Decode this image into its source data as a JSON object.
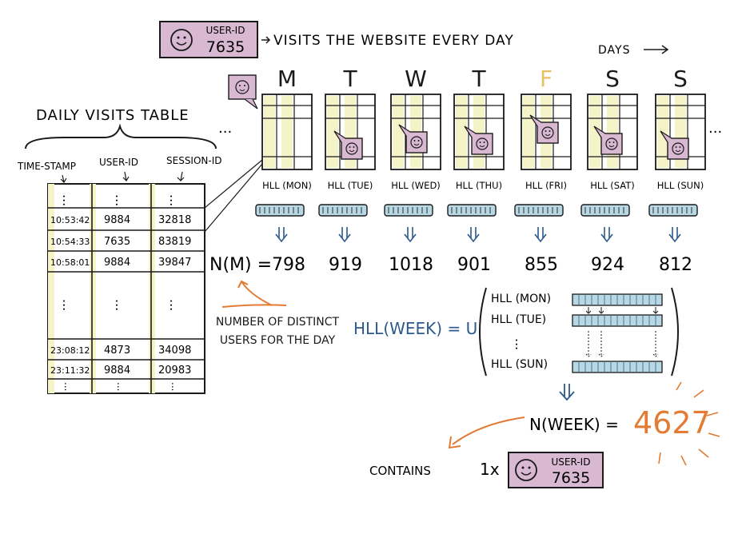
{
  "header": {
    "user_badge": {
      "label": "USER-ID",
      "id": "7635"
    },
    "visits_text": "VISITS THE WEBSITE EVERY DAY",
    "days_label": "DAYS"
  },
  "daily_table": {
    "title": "DAILY VISITS TABLE",
    "columns": [
      "TIME-STAMP",
      "USER-ID",
      "SESSION-ID"
    ],
    "rows_top": [
      [
        "10:53:42",
        "9884",
        "32818"
      ],
      [
        "10:54:33",
        "7635",
        "83819"
      ],
      [
        "10:58:01",
        "9884",
        "39847"
      ]
    ],
    "rows_bottom": [
      [
        "23:08:12",
        "4873",
        "34098"
      ],
      [
        "23:11:32",
        "9884",
        "20983"
      ]
    ]
  },
  "days": [
    {
      "letter": "M",
      "hll_label": "HLL (MON)",
      "count": "798"
    },
    {
      "letter": "T",
      "hll_label": "HLL (TUE)",
      "count": "919"
    },
    {
      "letter": "W",
      "hll_label": "HLL (WED)",
      "count": "1018"
    },
    {
      "letter": "T",
      "hll_label": "HLL (THU)",
      "count": "901"
    },
    {
      "letter": "F",
      "hll_label": "HLL (FRI)",
      "count": "855"
    },
    {
      "letter": "S",
      "hll_label": "HLL (SAT)",
      "count": "924"
    },
    {
      "letter": "S",
      "hll_label": "HLL (SUN)",
      "count": "812"
    }
  ],
  "ellipsis": "...",
  "n_m_label": "N(M) =",
  "number_note": "NUMBER OF DISTINCT USERS FOR THE DAY",
  "union": {
    "lhs": "HLL(WEEK) = U",
    "items": [
      "HLL (MON)",
      "HLL (TUE)",
      "HLL (SUN)"
    ]
  },
  "week_result": {
    "label": "N(WEEK) =",
    "value": "4627"
  },
  "contains": {
    "text": "CONTAINS",
    "multiplier": "1x",
    "badge_label": "USER-ID",
    "badge_id": "7635"
  },
  "colors": {
    "badge_fill": "#d9b8d2",
    "sketch_fill": "#f5f3c8",
    "hll_fill": "#b8d8e4",
    "orange": "#e27c34",
    "ink": "#1a1a1a",
    "blue_ink": "#2c5a8c"
  }
}
